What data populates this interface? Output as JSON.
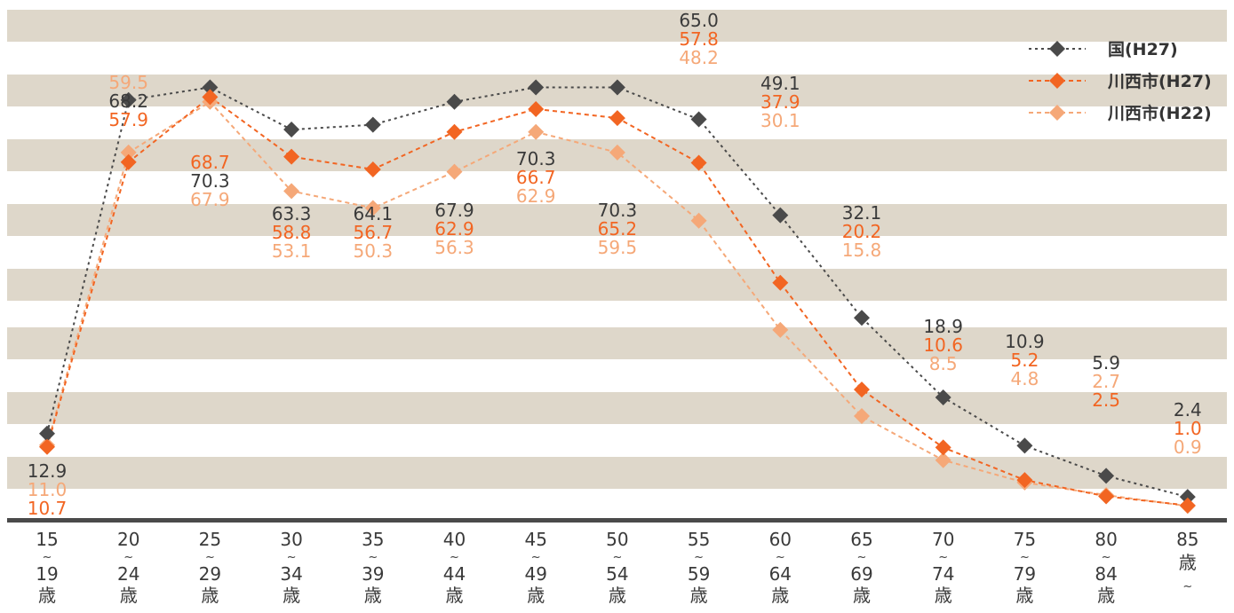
{
  "colors": {
    "band": "#ded7ca",
    "axis": "#4a4a4a",
    "tick_text": "#3a3a3a"
  },
  "chart_data": {
    "type": "line",
    "title": "",
    "xlabel": "",
    "ylabel": "",
    "ylim": [
      0,
      80
    ],
    "grid": "horizontal alternating bands",
    "legend_position": "top-right",
    "categories": [
      {
        "top": "15",
        "mid": "~",
        "bot": "19",
        "unit": "歳"
      },
      {
        "top": "20",
        "mid": "~",
        "bot": "24",
        "unit": "歳"
      },
      {
        "top": "25",
        "mid": "~",
        "bot": "29",
        "unit": "歳"
      },
      {
        "top": "30",
        "mid": "~",
        "bot": "34",
        "unit": "歳"
      },
      {
        "top": "35",
        "mid": "~",
        "bot": "39",
        "unit": "歳"
      },
      {
        "top": "40",
        "mid": "~",
        "bot": "44",
        "unit": "歳"
      },
      {
        "top": "45",
        "mid": "~",
        "bot": "49",
        "unit": "歳"
      },
      {
        "top": "50",
        "mid": "~",
        "bot": "54",
        "unit": "歳"
      },
      {
        "top": "55",
        "mid": "~",
        "bot": "59",
        "unit": "歳"
      },
      {
        "top": "60",
        "mid": "~",
        "bot": "64",
        "unit": "歳"
      },
      {
        "top": "65",
        "mid": "~",
        "bot": "69",
        "unit": "歳"
      },
      {
        "top": "70",
        "mid": "~",
        "bot": "74",
        "unit": "歳"
      },
      {
        "top": "75",
        "mid": "~",
        "bot": "79",
        "unit": "歳"
      },
      {
        "top": "80",
        "mid": "~",
        "bot": "84",
        "unit": "歳"
      },
      {
        "top": "85",
        "mid": "歳",
        "bot": "~",
        "unit": ""
      }
    ],
    "series": [
      {
        "name": "国(H27)",
        "color": "#4a4a4a",
        "label_color": "#3a3a3a",
        "dash": "dotted",
        "values": [
          12.9,
          68.2,
          70.3,
          63.3,
          64.1,
          67.9,
          70.3,
          70.3,
          65.0,
          49.1,
          32.1,
          18.9,
          10.9,
          5.9,
          2.4
        ],
        "labels": [
          "12.9",
          "68.2",
          "70.3",
          "63.3",
          "64.1",
          "67.9",
          "70.3",
          "70.3",
          "65.0",
          "49.1",
          "32.1",
          "18.9",
          "10.9",
          "5.9",
          "2.4"
        ]
      },
      {
        "name": "川西市(H27)",
        "color": "#f26522",
        "label_color": "#f26522",
        "dash": "dashed",
        "values": [
          10.7,
          57.9,
          68.7,
          58.8,
          56.7,
          62.9,
          66.7,
          65.2,
          57.8,
          37.9,
          20.2,
          10.6,
          5.2,
          2.5,
          1.0
        ],
        "labels": [
          "10.7",
          "57.9",
          "68.7",
          "58.8",
          "56.7",
          "62.9",
          "66.7",
          "65.2",
          "57.8",
          "37.9",
          "20.2",
          "10.6",
          "5.2",
          "2.5",
          "1.0"
        ]
      },
      {
        "name": "川西市(H22)",
        "color": "#f5a878",
        "label_color": "#f5a878",
        "dash": "dashed",
        "values": [
          11.0,
          59.5,
          67.9,
          53.1,
          50.3,
          56.3,
          62.9,
          59.5,
          48.2,
          30.1,
          15.8,
          8.5,
          4.8,
          2.7,
          0.9
        ],
        "labels": [
          "11.0",
          "59.5",
          "67.9",
          "53.1",
          "50.3",
          "56.3",
          "62.9",
          "59.5",
          "48.2",
          "30.1",
          "15.8",
          "8.5",
          "4.8",
          "2.7",
          "0.9"
        ]
      }
    ]
  }
}
